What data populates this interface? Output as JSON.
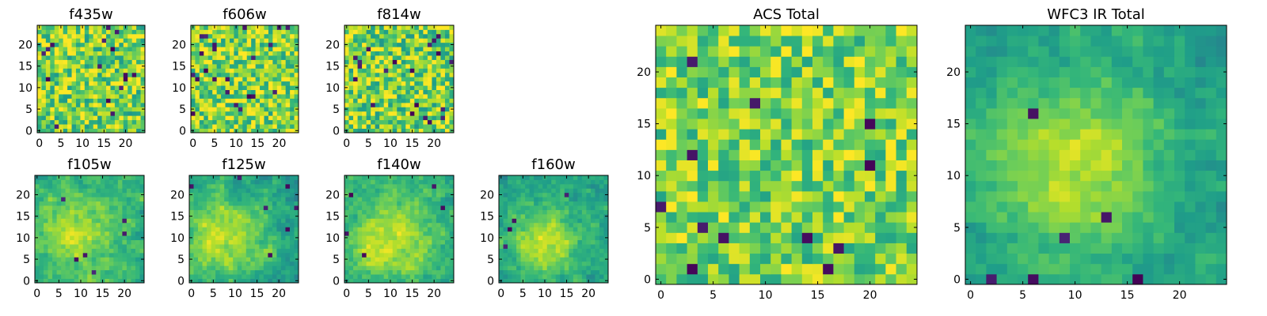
{
  "chart_data": [
    {
      "id": "f435w",
      "type": "heatmap",
      "title": "f435w",
      "size": 25,
      "xlim": [
        0,
        24
      ],
      "ylim": [
        0,
        24
      ],
      "xticks": [
        0,
        5,
        10,
        15,
        20
      ],
      "yticks": [
        0,
        5,
        10,
        15,
        20
      ],
      "colormap": "viridis",
      "mean": 0.64,
      "amp": 0.16,
      "noise": 0.26,
      "blob": [
        12,
        12
      ],
      "sigma": 40,
      "smooth": 0,
      "seed": 11,
      "holes": 16
    },
    {
      "id": "f606w",
      "type": "heatmap",
      "title": "f606w",
      "size": 25,
      "xlim": [
        0,
        24
      ],
      "ylim": [
        0,
        24
      ],
      "xticks": [
        0,
        5,
        10,
        15,
        20
      ],
      "yticks": [
        0,
        5,
        10,
        15,
        20
      ],
      "colormap": "viridis",
      "mean": 0.68,
      "amp": 0.14,
      "noise": 0.26,
      "blob": [
        12,
        12
      ],
      "sigma": 40,
      "smooth": 0,
      "seed": 23,
      "holes": 22
    },
    {
      "id": "f814w",
      "type": "heatmap",
      "title": "f814w",
      "size": 25,
      "xlim": [
        0,
        24
      ],
      "ylim": [
        0,
        24
      ],
      "xticks": [
        0,
        5,
        10,
        15,
        20
      ],
      "yticks": [
        0,
        5,
        10,
        15,
        20
      ],
      "colormap": "viridis",
      "mean": 0.66,
      "amp": 0.14,
      "noise": 0.27,
      "blob": [
        12,
        12
      ],
      "sigma": 40,
      "smooth": 0,
      "seed": 37,
      "holes": 20
    },
    {
      "id": "f105w",
      "type": "heatmap",
      "title": "f105w",
      "size": 25,
      "xlim": [
        0,
        24
      ],
      "ylim": [
        0,
        24
      ],
      "xticks": [
        0,
        5,
        10,
        15,
        20
      ],
      "yticks": [
        0,
        5,
        10,
        15,
        20
      ],
      "colormap": "viridis",
      "mean": 0.6,
      "amp": 0.3,
      "noise": 0.22,
      "blob": [
        9,
        11
      ],
      "sigma": 7,
      "smooth": 1,
      "seed": 41,
      "holes": 6
    },
    {
      "id": "f125w",
      "type": "heatmap",
      "title": "f125w",
      "size": 25,
      "xlim": [
        0,
        24
      ],
      "ylim": [
        0,
        24
      ],
      "xticks": [
        0,
        5,
        10,
        15,
        20
      ],
      "yticks": [
        0,
        5,
        10,
        15,
        20
      ],
      "colormap": "viridis",
      "mean": 0.58,
      "amp": 0.3,
      "noise": 0.22,
      "blob": [
        8,
        10
      ],
      "sigma": 7,
      "smooth": 1,
      "seed": 53,
      "holes": 7
    },
    {
      "id": "f140w",
      "type": "heatmap",
      "title": "f140w",
      "size": 25,
      "xlim": [
        0,
        24
      ],
      "ylim": [
        0,
        24
      ],
      "xticks": [
        0,
        5,
        10,
        15,
        20
      ],
      "yticks": [
        0,
        5,
        10,
        15,
        20
      ],
      "colormap": "viridis",
      "mean": 0.62,
      "amp": 0.3,
      "noise": 0.2,
      "blob": [
        10,
        10
      ],
      "sigma": 7,
      "smooth": 1,
      "seed": 67,
      "holes": 5
    },
    {
      "id": "f160w",
      "type": "heatmap",
      "title": "f160w",
      "size": 25,
      "xlim": [
        0,
        24
      ],
      "ylim": [
        0,
        24
      ],
      "xticks": [
        0,
        5,
        10,
        15,
        20
      ],
      "yticks": [
        0,
        5,
        10,
        15,
        20
      ],
      "colormap": "viridis",
      "mean": 0.56,
      "amp": 0.36,
      "noise": 0.18,
      "blob": [
        10,
        9
      ],
      "sigma": 6,
      "smooth": 1,
      "seed": 79,
      "holes": 4
    },
    {
      "id": "acs-total",
      "type": "heatmap",
      "title": "ACS Total",
      "size": 25,
      "xlim": [
        0,
        24
      ],
      "ylim": [
        0,
        24
      ],
      "xticks": [
        0,
        5,
        10,
        15,
        20
      ],
      "yticks": [
        0,
        5,
        10,
        15,
        20
      ],
      "colormap": "viridis",
      "mean": 0.7,
      "amp": 0.1,
      "noise": 0.22,
      "blob": [
        12,
        12
      ],
      "sigma": 40,
      "smooth": 0,
      "seed": 91,
      "holes": 12
    },
    {
      "id": "wfc3-ir-total",
      "type": "heatmap",
      "title": "WFC3 IR Total",
      "size": 25,
      "xlim": [
        0,
        24
      ],
      "ylim": [
        0,
        24
      ],
      "xticks": [
        0,
        5,
        10,
        15,
        20
      ],
      "yticks": [
        0,
        5,
        10,
        15,
        20
      ],
      "colormap": "viridis",
      "mean": 0.54,
      "amp": 0.38,
      "noise": 0.14,
      "blob": [
        10,
        11
      ],
      "sigma": 6,
      "smooth": 1,
      "seed": 103,
      "holes": 6
    }
  ]
}
